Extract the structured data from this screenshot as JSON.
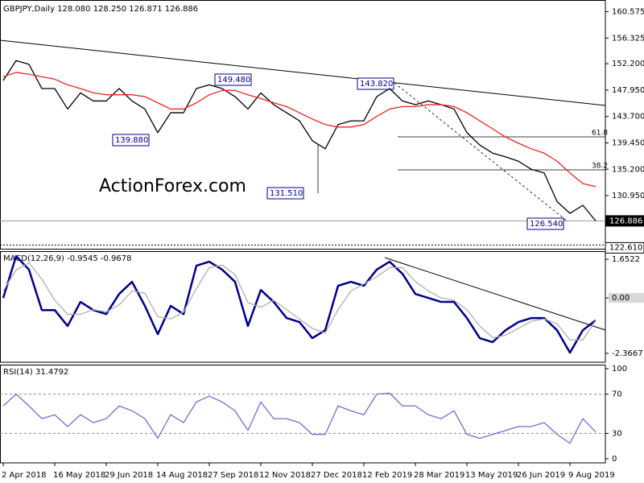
{
  "chart_data": [
    {
      "type": "line",
      "title": "GBPJPY,Daily  128.080 128.250 126.871 126.886",
      "watermark": "ActionForex.com",
      "ylim": [
        122.4,
        162.2
      ],
      "yticks": [
        160.575,
        156.325,
        {
          "value": 152.2,
          "label": "152.200"
        },
        {
          "value": 147.95,
          "label": "147.950"
        },
        {
          "value": 143.7,
          "label": "143.700"
        },
        {
          "value": 139.45,
          "label": "139.450"
        },
        {
          "value": 135.2,
          "label": "135.200"
        },
        {
          "value": 130.95,
          "label": "130.950"
        }
      ],
      "markers": [
        126.886,
        {
          "value": 122.61,
          "label": "122.610"
        }
      ],
      "annotations": [
        "149.480",
        "143.820",
        "139.880",
        "131.510",
        "126.540",
        "61.8",
        "38.2"
      ],
      "grid": false,
      "series": [
        {
          "color": "#000000",
          "values": [
            149.5,
            152.7,
            152.1,
            148.2,
            148.2,
            144.9,
            147.5,
            146.2,
            146.2,
            148.2,
            146.2,
            144.9,
            141.1,
            144.3,
            144.3,
            148.2,
            148.8,
            148.2,
            146.9,
            144.9,
            147.5,
            145.6,
            144.3,
            143.0,
            139.8,
            138.5,
            142.4,
            143.0,
            143.0,
            146.9,
            148.2,
            146.2,
            145.6,
            146.2,
            145.6,
            144.9,
            141.1,
            139.1,
            137.8,
            137.2,
            136.5,
            135.2,
            134.6,
            130.0,
            128.1,
            129.4,
            126.886
          ]
        },
        {
          "color": "#e8271e",
          "values": [
            150.1,
            150.8,
            150.5,
            150.1,
            149.7,
            148.8,
            148.2,
            147.5,
            147.2,
            147.2,
            147.2,
            146.9,
            145.9,
            144.9,
            144.9,
            145.9,
            147.2,
            147.9,
            147.9,
            147.2,
            146.6,
            145.9,
            145.3,
            144.3,
            143.3,
            142.4,
            142.0,
            142.0,
            142.4,
            143.7,
            144.9,
            145.3,
            145.3,
            145.6,
            145.6,
            145.3,
            144.3,
            143.0,
            141.7,
            140.4,
            139.4,
            138.5,
            137.8,
            136.5,
            134.6,
            132.9,
            132.4
          ]
        }
      ]
    },
    {
      "type": "line",
      "title": "MACD(12,26,9) -0.9545 -0.9678",
      "ylim": [
        -2.75,
        2.0
      ],
      "yticks": [
        1.6522,
        {
          "value": 0,
          "label": "0.00"
        },
        -2.3667
      ],
      "grid": false,
      "series": [
        {
          "color": "#00008b",
          "values": [
            0.0,
            1.79,
            1.21,
            -0.52,
            -0.52,
            -1.2,
            -0.17,
            -0.52,
            -0.69,
            0.17,
            0.69,
            -0.34,
            -1.55,
            -0.34,
            -0.69,
            1.38,
            1.55,
            1.21,
            0.69,
            -1.2,
            0.34,
            -0.17,
            -0.86,
            -1.03,
            -1.72,
            -1.38,
            0.52,
            0.69,
            0.52,
            1.21,
            1.55,
            1.03,
            0.17,
            0.0,
            -0.17,
            -0.17,
            -0.86,
            -1.72,
            -1.89,
            -1.38,
            -1.03,
            -0.86,
            -0.86,
            -1.38,
            -2.34,
            -1.38,
            -0.9545
          ]
        },
        {
          "color": "#b0b0b0",
          "values": [
            0.3,
            1.2,
            1.5,
            0.8,
            -0.1,
            -0.7,
            -0.7,
            -0.5,
            -0.6,
            -0.3,
            0.3,
            0.2,
            -0.8,
            -0.9,
            -0.6,
            0.4,
            1.3,
            1.4,
            1.0,
            -0.2,
            -0.4,
            -0.1,
            -0.5,
            -0.9,
            -1.3,
            -1.5,
            -0.5,
            0.3,
            0.6,
            0.9,
            1.3,
            1.3,
            0.7,
            0.3,
            0.0,
            -0.1,
            -0.5,
            -1.2,
            -1.7,
            -1.6,
            -1.3,
            -1.0,
            -0.9,
            -1.1,
            -1.8,
            -1.8,
            -0.9678
          ]
        }
      ]
    },
    {
      "type": "line",
      "title": "RSI(14) 31.4792",
      "ylim": [
        0,
        100
      ],
      "yticks": [
        100,
        70,
        30,
        0
      ],
      "grid": true,
      "categories": [
        "2 Apr 2018",
        null,
        null,
        null,
        "16 May 2018",
        null,
        null,
        null,
        "29 Jun 2018",
        null,
        null,
        null,
        "14 Aug 2018",
        null,
        null,
        null,
        "27 Sep 2018",
        null,
        null,
        null,
        "12 Nov 2018",
        null,
        null,
        null,
        "27 Dec 2018",
        null,
        null,
        null,
        "12 Feb 2019",
        null,
        null,
        null,
        "28 Mar 2019",
        null,
        null,
        null,
        "13 May 2019",
        null,
        null,
        null,
        "26 Jun 2019",
        null,
        null,
        null,
        "9 Aug 2019",
        null,
        null
      ],
      "series": [
        {
          "color": "#6f6fd8",
          "values": [
            58,
            70,
            58,
            45,
            49,
            37,
            49,
            41,
            45,
            58,
            53,
            45,
            25,
            49,
            41,
            62,
            68,
            62,
            53,
            33,
            62,
            45,
            45,
            41,
            29,
            29,
            58,
            53,
            49,
            70,
            71,
            58,
            58,
            49,
            45,
            53,
            29,
            25,
            29,
            33,
            37,
            37,
            41,
            29,
            20,
            45,
            31.4792
          ]
        }
      ]
    }
  ]
}
